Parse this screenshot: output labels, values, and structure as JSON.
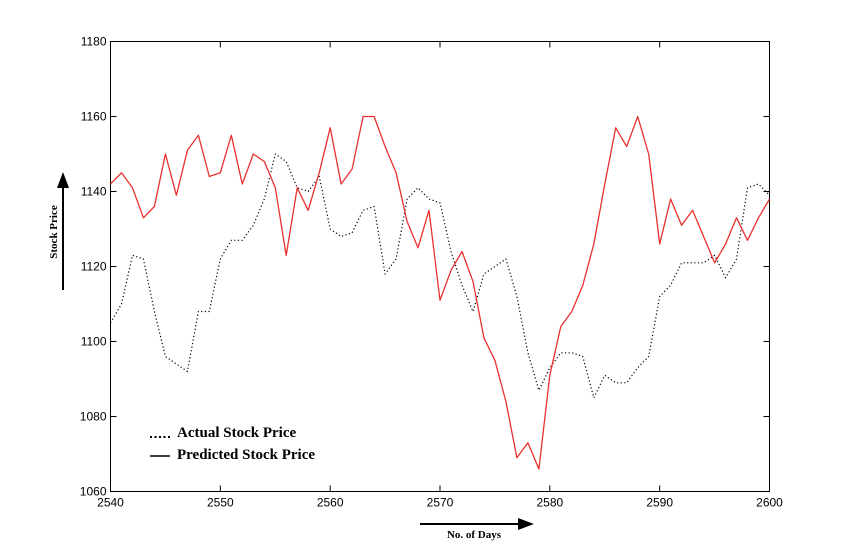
{
  "chart_data": {
    "type": "line",
    "title": "",
    "xlabel": "No. of Days",
    "ylabel": "Stock Price",
    "xlim": [
      2540,
      2600
    ],
    "ylim": [
      1060,
      1180
    ],
    "xticks": [
      2540,
      2550,
      2560,
      2570,
      2580,
      2590,
      2600
    ],
    "yticks": [
      1060,
      1080,
      1100,
      1120,
      1140,
      1160,
      1180
    ],
    "grid": false,
    "legend_position": "bottom-left",
    "series": [
      {
        "name": "Actual Stock Price",
        "style": "dotted",
        "color": "#000000",
        "x": [
          2540,
          2541,
          2542,
          2543,
          2544,
          2545,
          2546,
          2547,
          2548,
          2549,
          2550,
          2551,
          2552,
          2553,
          2554,
          2555,
          2556,
          2557,
          2558,
          2559,
          2560,
          2561,
          2562,
          2563,
          2564,
          2565,
          2566,
          2567,
          2568,
          2569,
          2570,
          2571,
          2572,
          2573,
          2574,
          2575,
          2576,
          2577,
          2578,
          2579,
          2580,
          2581,
          2582,
          2583,
          2584,
          2585,
          2586,
          2587,
          2588,
          2589,
          2590,
          2591,
          2592,
          2593,
          2594,
          2595,
          2596,
          2597,
          2598,
          2599,
          2600
        ],
        "y": [
          1105,
          1110,
          1123,
          1122,
          1108,
          1096,
          1094,
          1092,
          1108,
          1108,
          1122,
          1127,
          1127,
          1131,
          1138,
          1150,
          1148,
          1141,
          1140,
          1144,
          1130,
          1128,
          1129,
          1135,
          1136,
          1118,
          1122,
          1138,
          1141,
          1138,
          1137,
          1124,
          1115,
          1108,
          1118,
          1120,
          1122,
          1112,
          1097,
          1087,
          1093,
          1097,
          1097,
          1096,
          1085,
          1091,
          1089,
          1089,
          1093,
          1096,
          1112,
          1115,
          1121,
          1121,
          1121,
          1123,
          1117,
          1122,
          1141,
          1142,
          1139
        ]
      },
      {
        "name": "Predicted Stock Price",
        "style": "solid",
        "color": "#e8312f",
        "x": [
          2540,
          2541,
          2542,
          2543,
          2544,
          2545,
          2546,
          2547,
          2548,
          2549,
          2550,
          2551,
          2552,
          2553,
          2554,
          2555,
          2556,
          2557,
          2558,
          2559,
          2560,
          2561,
          2562,
          2563,
          2564,
          2565,
          2566,
          2567,
          2568,
          2569,
          2570,
          2571,
          2572,
          2573,
          2574,
          2575,
          2576,
          2577,
          2578,
          2579,
          2580,
          2581,
          2582,
          2583,
          2584,
          2585,
          2586,
          2587,
          2588,
          2589,
          2590,
          2591,
          2592,
          2593,
          2594,
          2595,
          2596,
          2597,
          2598,
          2599,
          2600
        ],
        "y": [
          1142,
          1145,
          1141,
          1133,
          1136,
          1150,
          1139,
          1151,
          1155,
          1144,
          1145,
          1155,
          1142,
          1150,
          1148,
          1141,
          1123,
          1141,
          1135,
          1145,
          1157,
          1142,
          1146,
          1160,
          1160,
          1152,
          1145,
          1132,
          1125,
          1135,
          1111,
          1119,
          1124,
          1116,
          1101,
          1095,
          1084,
          1069,
          1073,
          1066,
          1091,
          1104,
          1108,
          1115,
          1126,
          1142,
          1157,
          1152,
          1160,
          1150,
          1126,
          1138,
          1131,
          1135,
          1128,
          1121,
          1126,
          1133,
          1127,
          1133,
          1138
        ]
      }
    ]
  }
}
